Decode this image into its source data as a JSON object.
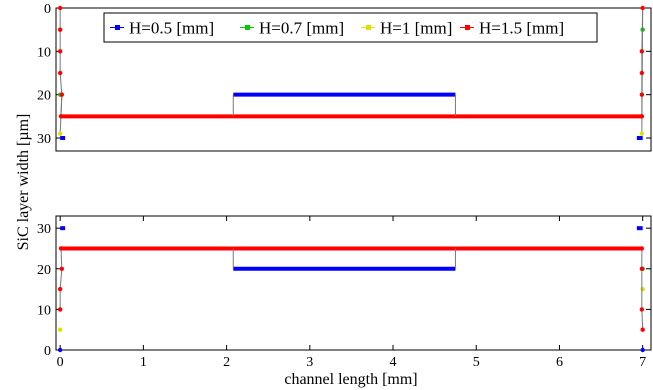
{
  "chart_data": [
    {
      "type": "line",
      "panel": "top",
      "yaxis_inverted": true,
      "xlim": [
        -0.05,
        7.1
      ],
      "ylim": [
        0,
        33
      ],
      "xticks": [],
      "yticks": [
        0,
        10,
        20,
        30
      ],
      "grid": false,
      "legend": {
        "placement": "top-center",
        "entries": [
          "H=0.5 [mm]",
          "H=0.7 [mm]",
          "H=1 [mm]",
          "H=1.5 [mm]"
        ]
      },
      "series": [
        {
          "name": "H=0.5 [mm]",
          "color": "#0000ff",
          "segments": [
            [
              [
                0,
                30
              ],
              [
                0.06,
                30
              ]
            ],
            [
              [
                2.08,
                20
              ],
              [
                4.75,
                20
              ]
            ],
            [
              [
                6.93,
                30
              ],
              [
                7.0,
                30
              ]
            ]
          ]
        },
        {
          "name": "H=0.7 [mm]",
          "color": "#00cc00",
          "points": [
            [
              0,
              20
            ],
            [
              7.0,
              5
            ]
          ]
        },
        {
          "name": "H=1 [mm]",
          "color": "#e0e000",
          "points": [
            [
              0,
              29
            ],
            [
              0.02,
              20
            ],
            [
              7.0,
              0
            ],
            [
              6.99,
              29
            ]
          ]
        },
        {
          "name": "H=1.5 [mm]",
          "color": "#ff0000",
          "segments": [
            [
              [
                0.01,
                25
              ],
              [
                7.0,
                25
              ]
            ]
          ],
          "points": [
            [
              0,
              0
            ],
            [
              0,
              5
            ],
            [
              0,
              10
            ],
            [
              0,
              15
            ],
            [
              0.02,
              20
            ],
            [
              0.01,
              25
            ],
            [
              6.99,
              25
            ],
            [
              6.99,
              20
            ],
            [
              6.99,
              15
            ],
            [
              6.99,
              10
            ],
            [
              7.0,
              0
            ]
          ]
        }
      ]
    },
    {
      "type": "line",
      "panel": "bottom",
      "xlim": [
        -0.05,
        7.1
      ],
      "ylim": [
        0,
        33
      ],
      "xticks": [
        0,
        1,
        2,
        3,
        4,
        5,
        6,
        7
      ],
      "yticks": [
        0,
        10,
        20,
        30
      ],
      "grid": false,
      "series": [
        {
          "name": "H=0.5 [mm]",
          "color": "#0000ff",
          "segments": [
            [
              [
                0,
                30
              ],
              [
                0.06,
                30
              ]
            ],
            [
              [
                2.08,
                20
              ],
              [
                4.75,
                20
              ]
            ],
            [
              [
                6.93,
                30
              ],
              [
                7.0,
                30
              ]
            ]
          ],
          "points": [
            [
              0,
              0
            ],
            [
              7.0,
              0
            ]
          ]
        },
        {
          "name": "H=0.7 [mm]",
          "color": "#00cc00",
          "points": [
            [
              0,
              10
            ],
            [
              7.0,
              20
            ]
          ]
        },
        {
          "name": "H=1 [mm]",
          "color": "#e0e000",
          "points": [
            [
              0,
              5
            ],
            [
              7.0,
              15
            ]
          ]
        },
        {
          "name": "H=1.5 [mm]",
          "color": "#ff0000",
          "segments": [
            [
              [
                0.01,
                25
              ],
              [
                7.0,
                25
              ]
            ]
          ],
          "points": [
            [
              0,
              10
            ],
            [
              0,
              15
            ],
            [
              0.02,
              20
            ],
            [
              0.01,
              25
            ],
            [
              6.99,
              25
            ],
            [
              6.99,
              20
            ],
            [
              6.99,
              10
            ],
            [
              7.0,
              5
            ]
          ]
        }
      ]
    }
  ],
  "axes": {
    "xlabel": "channel length [mm]",
    "ylabel": "SiC layer width [µm]"
  }
}
